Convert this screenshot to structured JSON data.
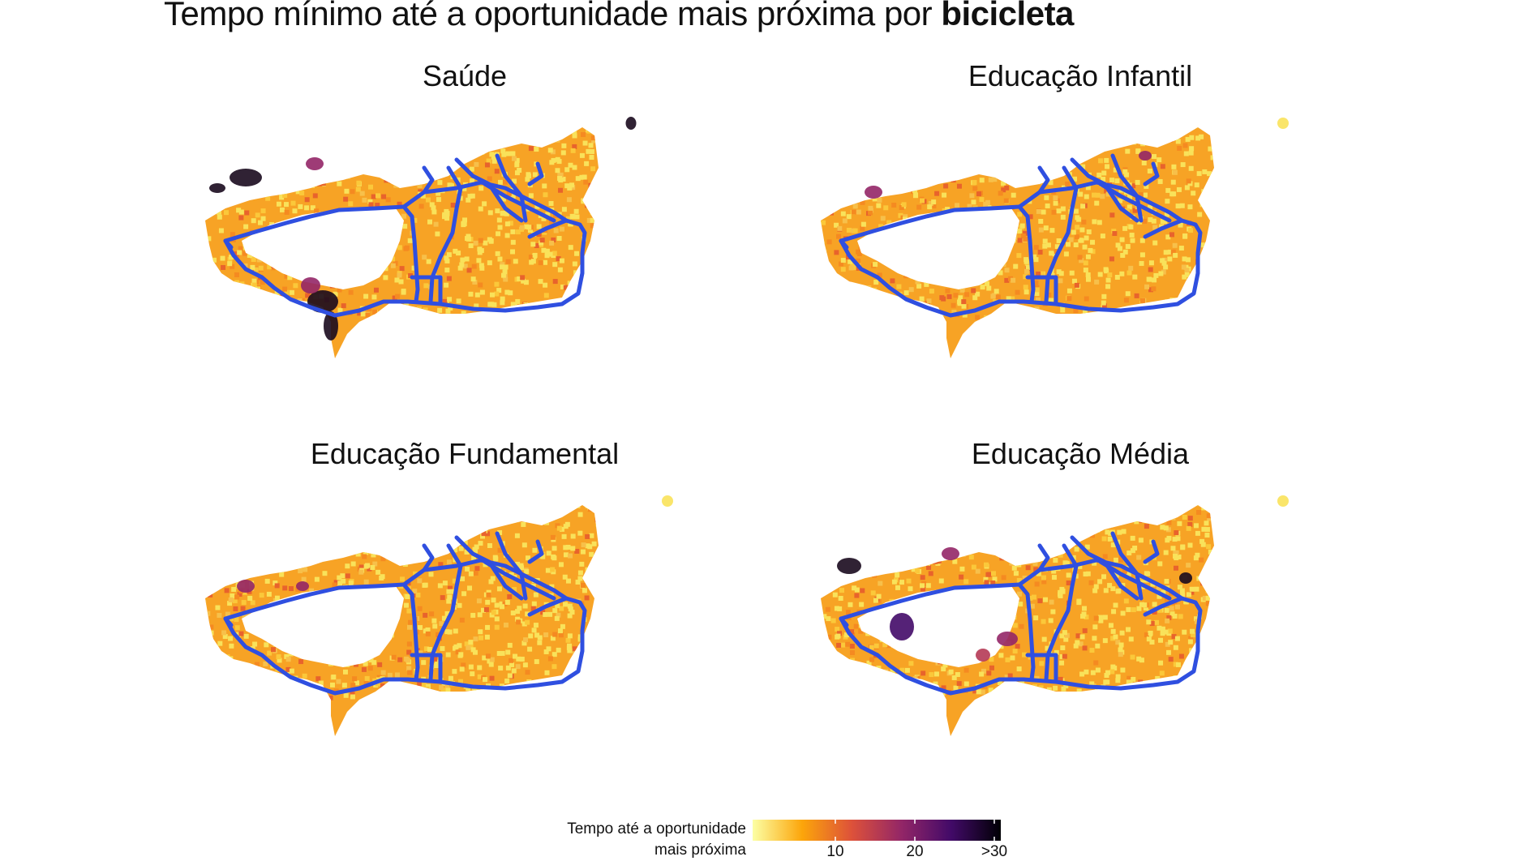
{
  "title": {
    "text": "Tempo mínimo até a oportunidade mais próxima por ",
    "emphasis": "bicicleta"
  },
  "panels": [
    {
      "label": "Saúde"
    },
    {
      "label": "Educação Infantil"
    },
    {
      "label": "Educação Fundamental"
    },
    {
      "label": "Educação Média"
    }
  ],
  "legend": {
    "title_line1": "Tempo até a oportunidade",
    "title_line2": "mais próxima",
    "ticks": [
      "10",
      "20",
      ">30"
    ],
    "colors": [
      "#fcffa4",
      "#fca50a",
      "#dd513a",
      "#932667",
      "#420a68",
      "#000004"
    ]
  },
  "colors": {
    "road": "#2f4fe0",
    "fill_low": "#f9e25a",
    "fill_mid": "#f7a325",
    "fill_high": "#b53a55",
    "fill_max": "#1a0a1e"
  }
}
